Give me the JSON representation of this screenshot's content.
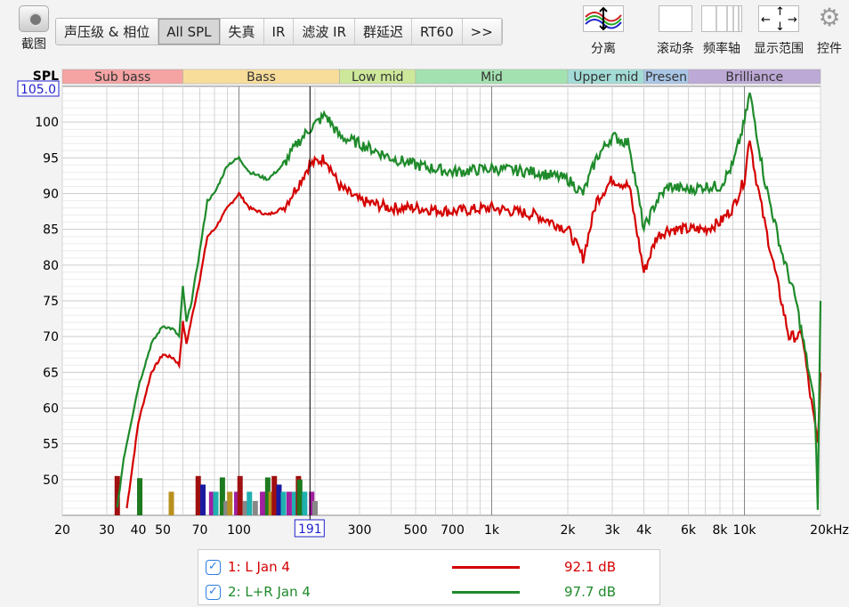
{
  "toolbar": {
    "screenshot_label": "截图",
    "tabs": [
      {
        "label": "声压级 & 相位"
      },
      {
        "label": "All SPL",
        "active": true
      },
      {
        "label": "失真"
      },
      {
        "label": "IR"
      },
      {
        "label": "滤波 IR"
      },
      {
        "label": "群延迟"
      },
      {
        "label": "RT60"
      },
      {
        "label": ">>"
      }
    ],
    "tools": [
      {
        "label": "分离",
        "icon": "separate-traces-icon"
      },
      {
        "label": "滚动条",
        "icon": "scrollbar-icon"
      },
      {
        "label": "频率轴",
        "icon": "frequency-axis-icon"
      },
      {
        "label": "显示范围",
        "icon": "display-range-icon"
      },
      {
        "label": "控件",
        "icon": "gear-icon"
      }
    ]
  },
  "chart_data": {
    "type": "line",
    "ylabel": "SPL",
    "xscale": "log",
    "xlim": [
      20,
      20000
    ],
    "ylim": [
      45,
      105
    ],
    "y_top_readout": "105.0",
    "cursor_readout": "191",
    "cursor_freq": 191,
    "grid": true,
    "xticks": [
      {
        "v": 20,
        "l": "20"
      },
      {
        "v": 30,
        "l": "30"
      },
      {
        "v": 40,
        "l": "40"
      },
      {
        "v": 50,
        "l": "50"
      },
      {
        "v": 70,
        "l": "70"
      },
      {
        "v": 100,
        "l": "100"
      },
      {
        "v": 300,
        "l": "300"
      },
      {
        "v": 500,
        "l": "500"
      },
      {
        "v": 700,
        "l": "700"
      },
      {
        "v": 1000,
        "l": "1k"
      },
      {
        "v": 2000,
        "l": "2k"
      },
      {
        "v": 3000,
        "l": "3k"
      },
      {
        "v": 4000,
        "l": "4k"
      },
      {
        "v": 6000,
        "l": "6k"
      },
      {
        "v": 8000,
        "l": "8k"
      },
      {
        "v": 10000,
        "l": "10k"
      },
      {
        "v": 20000,
        "l": "20kHz"
      }
    ],
    "yticks": [
      100,
      95,
      90,
      85,
      80,
      75,
      70,
      65,
      60,
      55,
      50
    ],
    "bands": [
      {
        "name": "Sub bass",
        "from": 20,
        "to": 60,
        "color": "#f5a3a3"
      },
      {
        "name": "Bass",
        "from": 60,
        "to": 250,
        "color": "#f8dd9a"
      },
      {
        "name": "Low mid",
        "from": 250,
        "to": 500,
        "color": "#cde89a"
      },
      {
        "name": "Mid",
        "from": 500,
        "to": 2000,
        "color": "#a3e2b0"
      },
      {
        "name": "Upper mid",
        "from": 2000,
        "to": 4000,
        "color": "#a3dcd6"
      },
      {
        "name": "Presen",
        "from": 4000,
        "to": 6000,
        "color": "#a9c6e6"
      },
      {
        "name": "Brilliance",
        "from": 6000,
        "to": 20000,
        "color": "#bda9d6"
      }
    ],
    "series": [
      {
        "name": "1: L Jan 4",
        "value": "92.1 dB",
        "color": "#d40000",
        "x": [
          36,
          40,
          45,
          50,
          55,
          58,
          60,
          62,
          70,
          75,
          80,
          90,
          100,
          110,
          130,
          150,
          170,
          190,
          220,
          250,
          300,
          400,
          500,
          700,
          1000,
          1500,
          2000,
          2300,
          2600,
          3000,
          3500,
          4000,
          4500,
          5000,
          6000,
          7000,
          8000,
          9000,
          10000,
          10500,
          11000,
          12000,
          14000,
          15000,
          17000,
          18000,
          19500,
          20000
        ],
        "y": [
          46,
          58,
          65,
          67.5,
          67,
          66,
          72,
          69,
          78,
          84,
          85,
          88,
          90,
          88,
          87,
          88,
          91,
          94,
          95,
          91,
          89,
          88,
          88,
          87.5,
          88,
          87,
          85,
          81,
          89,
          92,
          91,
          79,
          84,
          85,
          85,
          85,
          86,
          88,
          92,
          98,
          93,
          86,
          75,
          70,
          70,
          63,
          55,
          65
        ]
      },
      {
        "name": "2: L+R Jan 4",
        "value": "97.7 dB",
        "color": "#1e8a2a",
        "x": [
          33,
          35,
          40,
          45,
          50,
          55,
          58,
          60,
          62,
          65,
          70,
          75,
          80,
          90,
          100,
          110,
          130,
          150,
          170,
          190,
          220,
          250,
          300,
          400,
          500,
          700,
          1000,
          1500,
          2000,
          2300,
          2600,
          3000,
          3500,
          4000,
          4500,
          5000,
          6000,
          7000,
          8000,
          9000,
          10000,
          10500,
          11000,
          12000,
          14000,
          16000,
          18000,
          19000,
          19500,
          20000
        ],
        "y": [
          46,
          53,
          63,
          69,
          71.5,
          71,
          70,
          77,
          72,
          75,
          82,
          89,
          90,
          94,
          95,
          93,
          92,
          94,
          97,
          99,
          101,
          98,
          97,
          95,
          94,
          93,
          93.5,
          93,
          92,
          90,
          95,
          98,
          97,
          85,
          89,
          91,
          90.5,
          91,
          91,
          94,
          100,
          104,
          100,
          92,
          82,
          75,
          65,
          60,
          46,
          75
        ]
      }
    ],
    "markers": [
      {
        "f": 33,
        "top": 50.5,
        "c": "#a01010"
      },
      {
        "f": 40.5,
        "top": 50.2,
        "c": "#1e7a1e"
      },
      {
        "f": 54,
        "top": 48.3,
        "c": "#b8901e"
      },
      {
        "f": 69,
        "top": 50.5,
        "c": "#a01010"
      },
      {
        "f": 72,
        "top": 49.3,
        "c": "#1a1aa0"
      },
      {
        "f": 78,
        "top": 48.3,
        "c": "#a020a0"
      },
      {
        "f": 81,
        "top": 48.3,
        "c": "#20b0b0"
      },
      {
        "f": 86,
        "top": 50.3,
        "c": "#1e7a1e"
      },
      {
        "f": 89,
        "top": 47,
        "c": "#888"
      },
      {
        "f": 92,
        "top": 48.3,
        "c": "#b8901e"
      },
      {
        "f": 98,
        "top": 48.3,
        "c": "#a020a0"
      },
      {
        "f": 101,
        "top": 50.5,
        "c": "#a01010"
      },
      {
        "f": 106,
        "top": 47,
        "c": "#888"
      },
      {
        "f": 110,
        "top": 48.3,
        "c": "#20b0b0"
      },
      {
        "f": 116,
        "top": 47,
        "c": "#888"
      },
      {
        "f": 124,
        "top": 48.3,
        "c": "#a020a0"
      },
      {
        "f": 130,
        "top": 50.3,
        "c": "#1e7a1e"
      },
      {
        "f": 134,
        "top": 48.3,
        "c": "#b8901e"
      },
      {
        "f": 138,
        "top": 50.5,
        "c": "#a01010"
      },
      {
        "f": 144,
        "top": 49.3,
        "c": "#1a1aa0"
      },
      {
        "f": 150,
        "top": 48.3,
        "c": "#20b0b0"
      },
      {
        "f": 158,
        "top": 48.3,
        "c": "#a020a0"
      },
      {
        "f": 166,
        "top": 48.3,
        "c": "#20b0b0"
      },
      {
        "f": 172,
        "top": 50.5,
        "c": "#a01010"
      },
      {
        "f": 174,
        "top": 50,
        "c": "#1e7a1e"
      },
      {
        "f": 182,
        "top": 48.3,
        "c": "#20b0b0"
      },
      {
        "f": 194,
        "top": 48.3,
        "c": "#a020a0"
      },
      {
        "f": 200,
        "top": 47,
        "c": "#888"
      }
    ]
  }
}
